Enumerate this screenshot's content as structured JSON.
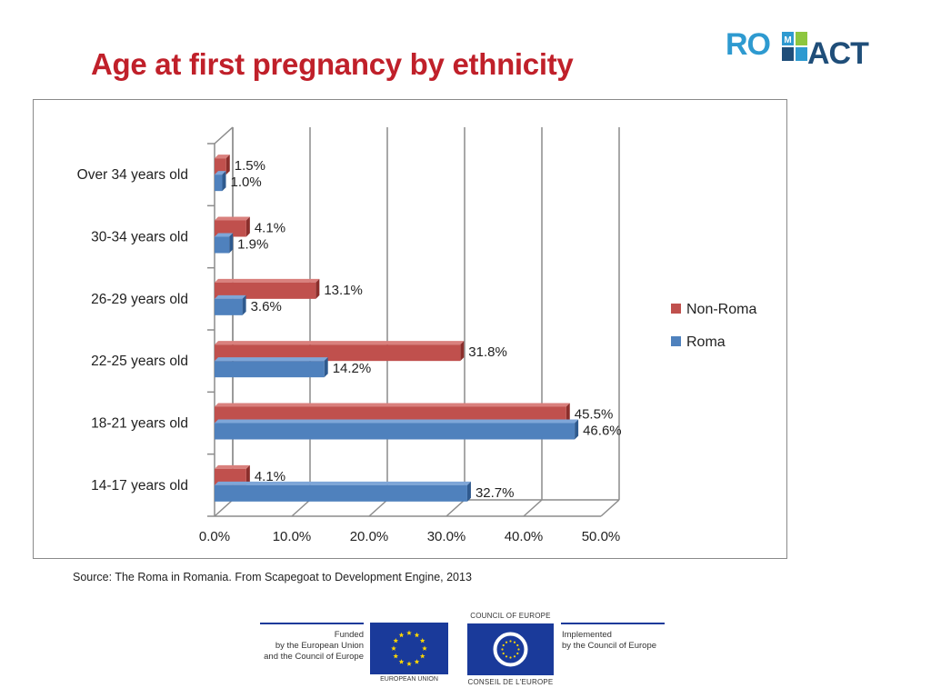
{
  "page": {
    "title": "Age at first pregnancy by ethnicity",
    "source": "Source: The Roma in Romania. From Scapegoat to Development Engine, 2013"
  },
  "logo": {
    "part1": "RO",
    "part2": "ACT"
  },
  "footer": {
    "funded_line1": "Funded",
    "funded_line2": "by the European Union",
    "funded_line3": "and the Council of Europe",
    "eu_caption": "EUROPEAN UNION",
    "coe_top": "COUNCIL OF EUROPE",
    "coe_bottom": "CONSEIL DE L'EUROPE",
    "impl_line1": "Implemented",
    "impl_line2": "by the Council of Europe"
  },
  "colors": {
    "title": "#c0202a",
    "non_roma": "#c0504d",
    "roma": "#4f81bd",
    "eu_blue": "#1a3a9a",
    "star": "#ffd700"
  },
  "chart_data": {
    "type": "bar",
    "orientation": "horizontal",
    "title": "",
    "xlabel": "",
    "ylabel": "",
    "categories": [
      "Over  34  years old",
      "30-34 years old",
      "26-29 years old",
      "22-25  years old",
      "18-21  years old",
      "14-17 years old"
    ],
    "series": [
      {
        "name": "Non-Roma",
        "values": [
          1.5,
          4.1,
          13.1,
          31.8,
          45.5,
          4.1
        ],
        "labels": [
          "1.5%",
          "4.1%",
          "13.1%",
          "31.8%",
          "45.5%",
          "4.1%"
        ]
      },
      {
        "name": "Roma",
        "values": [
          1.0,
          1.9,
          3.6,
          14.2,
          46.6,
          32.7
        ],
        "labels": [
          "1.0%",
          "1.9%",
          "3.6%",
          "14.2%",
          "46.6%",
          "32.7%"
        ]
      }
    ],
    "xlim": [
      0,
      50
    ],
    "xticks": [
      "0.0%",
      "10.0%",
      "20.0%",
      "30.0%",
      "40.0%",
      "50.0%"
    ],
    "grid": true,
    "legend": "right",
    "style": "3d"
  }
}
